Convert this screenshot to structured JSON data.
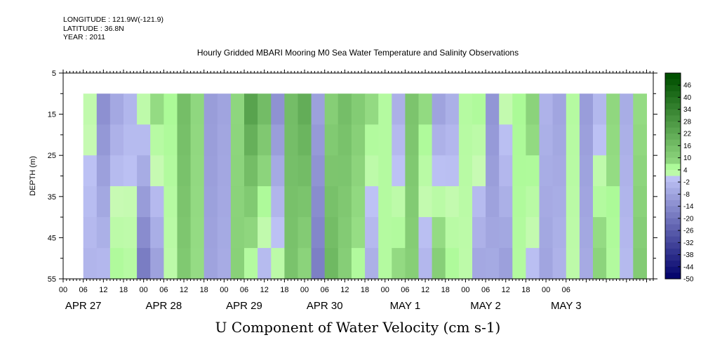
{
  "header": {
    "longitude": "LONGITUDE : 121.9W(-121.9)",
    "latitude": "LATITUDE : 36.8N",
    "year": "YEAR : 2011"
  },
  "chart_data": {
    "type": "heatmap",
    "title": "Hourly Gridded MBARI Mooring M0 Sea Water Temperature and Salinity Observations",
    "xlabel": "U Component of Water Velocity (cm s-1)",
    "ylabel": "DEPTH (m)",
    "ylim": [
      55,
      5
    ],
    "y_ticks": [
      "5",
      "15",
      "25",
      "35",
      "45",
      "55"
    ],
    "x_range_hours": [
      0,
      176
    ],
    "data_start_hour": 6,
    "data_end_hour": 174,
    "data_top_depth": 10,
    "data_bottom_depth": 55,
    "hour_ticks": [
      "00",
      "06",
      "12",
      "18",
      "00",
      "06",
      "12",
      "18",
      "00",
      "06",
      "12",
      "18",
      "00",
      "06",
      "12",
      "18",
      "00",
      "06",
      "12",
      "18",
      "00",
      "06",
      "12",
      "18",
      "00",
      "06"
    ],
    "date_labels": [
      {
        "label": "APR 27",
        "hour": 6
      },
      {
        "label": "APR 28",
        "hour": 30
      },
      {
        "label": "APR 29",
        "hour": 54
      },
      {
        "label": "APR 30",
        "hour": 78
      },
      {
        "label": "MAY  1",
        "hour": 102
      },
      {
        "label": "MAY  2",
        "hour": 126
      },
      {
        "label": "MAY  3",
        "hour": 150
      }
    ],
    "colorbar": {
      "labels": [
        "46",
        "40",
        "34",
        "28",
        "22",
        "16",
        "10",
        "4",
        "-2",
        "-8",
        "-14",
        "-20",
        "-26",
        "-32",
        "-38",
        "-44",
        "-50"
      ],
      "range": [
        -50,
        52
      ]
    },
    "columns": [
      {
        "hour": 6,
        "surface": 2,
        "bottom": -4
      },
      {
        "hour": 10,
        "surface": -14,
        "bottom": -2
      },
      {
        "hour": 14,
        "surface": -8,
        "bottom": 6
      },
      {
        "hour": 18,
        "surface": -4,
        "bottom": 4
      },
      {
        "hour": 22,
        "surface": 4,
        "bottom": -20
      },
      {
        "hour": 26,
        "surface": 8,
        "bottom": -10
      },
      {
        "hour": 30,
        "surface": 6,
        "bottom": 2
      },
      {
        "hour": 34,
        "surface": 16,
        "bottom": 12
      },
      {
        "hour": 38,
        "surface": 8,
        "bottom": 6
      },
      {
        "hour": 42,
        "surface": -10,
        "bottom": -8
      },
      {
        "hour": 46,
        "surface": -8,
        "bottom": -6
      },
      {
        "hour": 50,
        "surface": 8,
        "bottom": 10
      },
      {
        "hour": 54,
        "surface": 26,
        "bottom": 2
      },
      {
        "hour": 58,
        "surface": 18,
        "bottom": -4
      },
      {
        "hour": 62,
        "surface": -14,
        "bottom": 4
      },
      {
        "hour": 66,
        "surface": 16,
        "bottom": 14
      },
      {
        "hour": 70,
        "surface": 22,
        "bottom": 8
      },
      {
        "hour": 74,
        "surface": -8,
        "bottom": -18
      },
      {
        "hour": 78,
        "surface": 10,
        "bottom": 18
      },
      {
        "hour": 82,
        "surface": 16,
        "bottom": 10
      },
      {
        "hour": 86,
        "surface": 12,
        "bottom": 4
      },
      {
        "hour": 90,
        "surface": 8,
        "bottom": -6
      },
      {
        "hour": 94,
        "surface": 4,
        "bottom": 4
      },
      {
        "hour": 98,
        "surface": -6,
        "bottom": 8
      },
      {
        "hour": 102,
        "surface": 14,
        "bottom": 10
      },
      {
        "hour": 106,
        "surface": 8,
        "bottom": -4
      },
      {
        "hour": 110,
        "surface": -10,
        "bottom": 12
      },
      {
        "hour": 114,
        "surface": -6,
        "bottom": 6
      },
      {
        "hour": 118,
        "surface": 4,
        "bottom": 2
      },
      {
        "hour": 122,
        "surface": 6,
        "bottom": -8
      },
      {
        "hour": 126,
        "surface": -12,
        "bottom": -6
      },
      {
        "hour": 130,
        "surface": 2,
        "bottom": -10
      },
      {
        "hour": 134,
        "surface": 6,
        "bottom": 4
      },
      {
        "hour": 138,
        "surface": 10,
        "bottom": -2
      },
      {
        "hour": 142,
        "surface": -4,
        "bottom": -8
      },
      {
        "hour": 146,
        "surface": -8,
        "bottom": -4
      },
      {
        "hour": 150,
        "surface": 4,
        "bottom": 2
      },
      {
        "hour": 154,
        "surface": -10,
        "bottom": -6
      },
      {
        "hour": 158,
        "surface": -4,
        "bottom": 10
      },
      {
        "hour": 162,
        "surface": 8,
        "bottom": 4
      },
      {
        "hour": 166,
        "surface": -6,
        "bottom": -2
      },
      {
        "hour": 170,
        "surface": 6,
        "bottom": 12
      },
      {
        "hour": 174,
        "surface": 2,
        "bottom": 6
      }
    ]
  }
}
